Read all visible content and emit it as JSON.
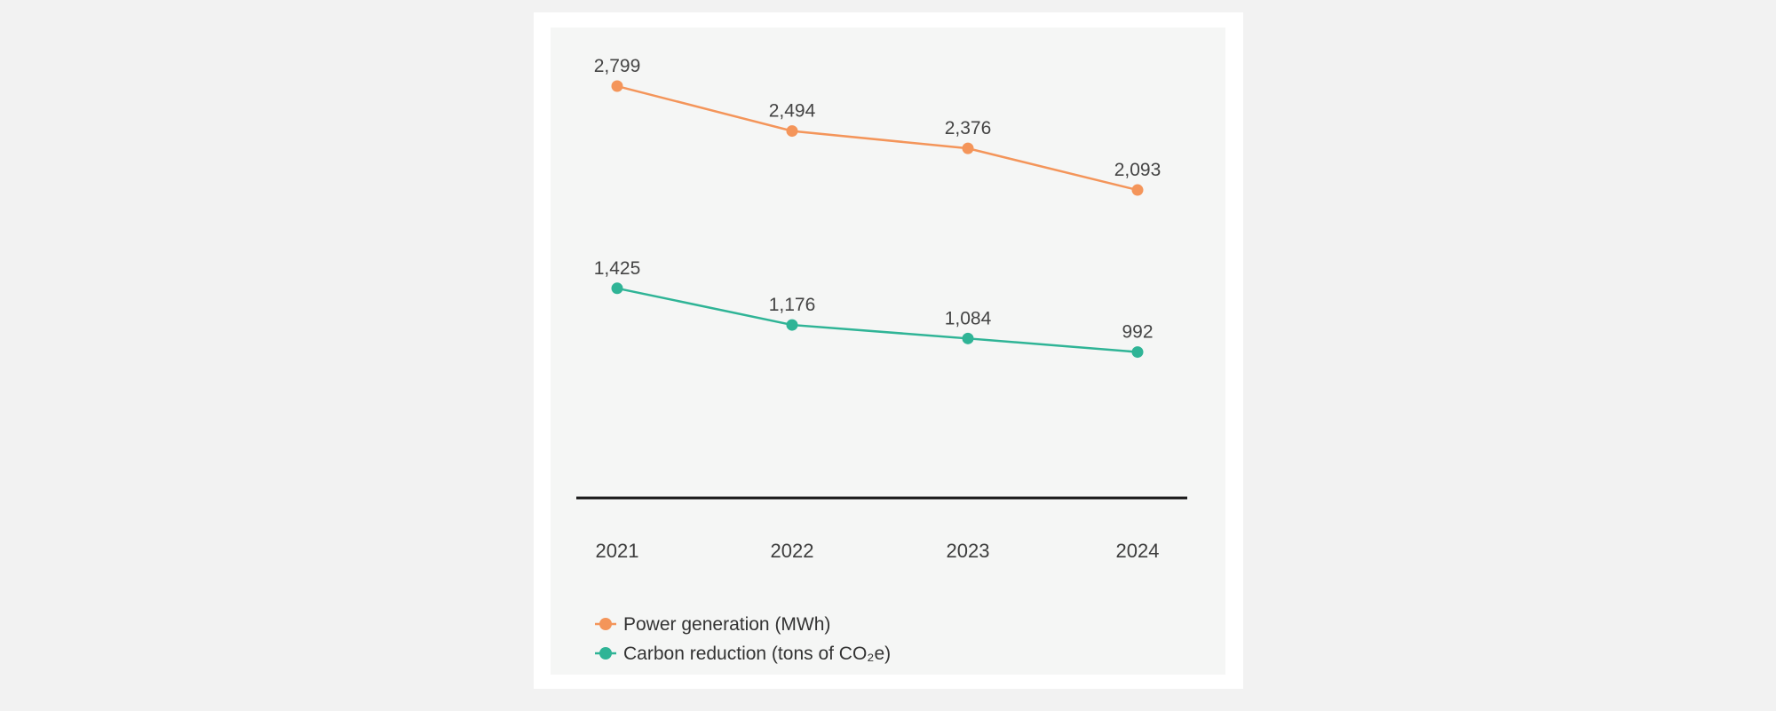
{
  "chart_data": {
    "type": "line",
    "categories": [
      "2021",
      "2022",
      "2023",
      "2024"
    ],
    "series": [
      {
        "name": "Power generation (MWh)",
        "color": "#f4955a",
        "values": [
          2799,
          2494,
          2376,
          2093
        ],
        "labels": [
          "2,799",
          "2,494",
          "2,376",
          "2,093"
        ]
      },
      {
        "name": "Carbon reduction (tons of CO₂e)",
        "color": "#2fb496",
        "values": [
          1425,
          1176,
          1084,
          992
        ],
        "labels": [
          "1,425",
          "1,176",
          "1,084",
          "992"
        ]
      }
    ],
    "ylim": [
      0,
      2950
    ],
    "grid": false,
    "legend_position": "bottom-left"
  }
}
